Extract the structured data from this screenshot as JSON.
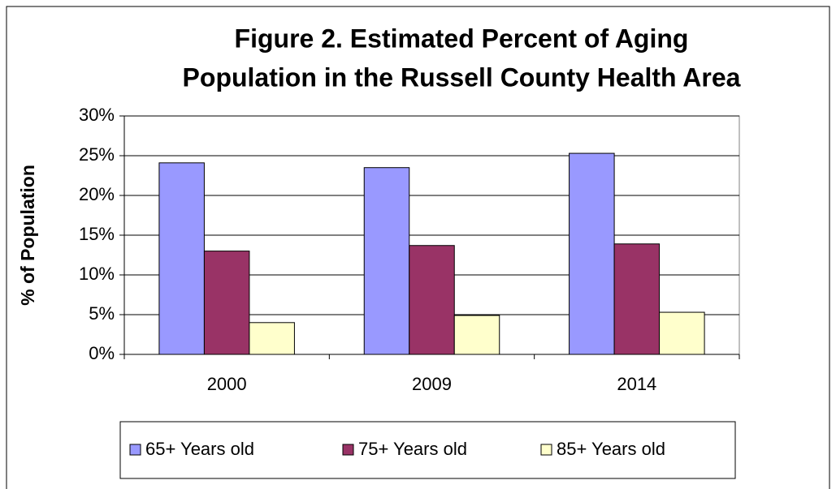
{
  "chart_data": {
    "type": "bar",
    "title": [
      "Figure 2. Estimated Percent of Aging",
      "Population in the Russell County Health Area"
    ],
    "ylabel": "% of Population",
    "categories": [
      "2000",
      "2009",
      "2014"
    ],
    "series": [
      {
        "name": "65+ Years old",
        "color": "#9999ff",
        "values": [
          24.1,
          23.5,
          25.3
        ]
      },
      {
        "name": "75+ Years old",
        "color": "#993366",
        "values": [
          13.0,
          13.7,
          13.9
        ]
      },
      {
        "name": "85+ Years old",
        "color": "#ffffcc",
        "values": [
          4.0,
          4.9,
          5.3
        ]
      }
    ],
    "ylim": [
      0,
      30
    ],
    "yticks": [
      {
        "value": 0,
        "label": "0%"
      },
      {
        "value": 5,
        "label": "5%"
      },
      {
        "value": 10,
        "label": "10%"
      },
      {
        "value": 15,
        "label": "15%"
      },
      {
        "value": 20,
        "label": "20%"
      },
      {
        "value": 25,
        "label": "25%"
      },
      {
        "value": 30,
        "label": "30%"
      }
    ],
    "grid": true,
    "legend": "bottom"
  }
}
